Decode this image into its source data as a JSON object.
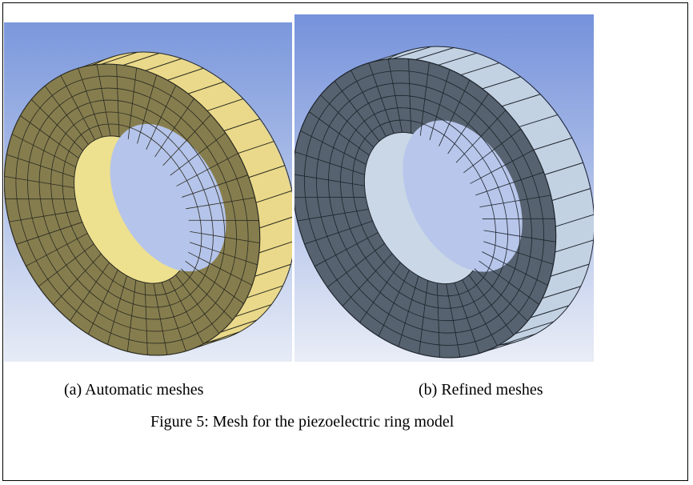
{
  "figure": {
    "panels": [
      {
        "label": "(a) Automatic meshes"
      },
      {
        "label": "(b) Refined meshes"
      }
    ],
    "caption": "Figure 5: Mesh for the piezoelectric ring model"
  }
}
